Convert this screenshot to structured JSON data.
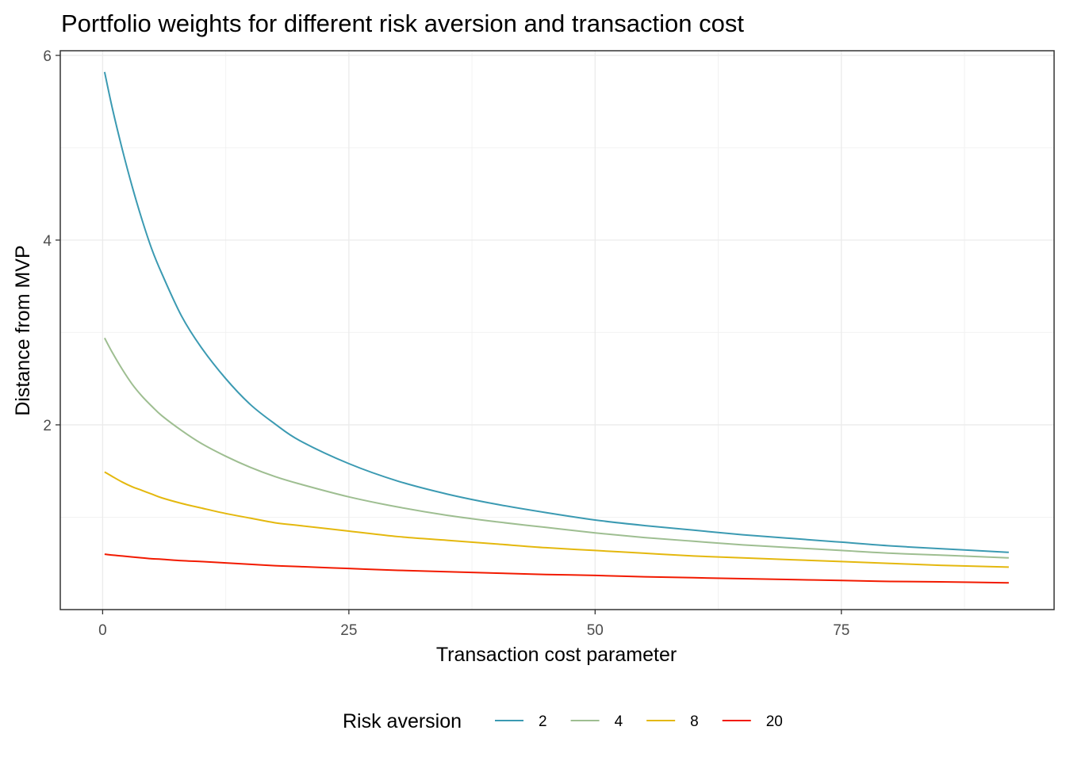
{
  "chart_data": {
    "type": "line",
    "title": "Portfolio weights for different risk aversion and transaction cost",
    "xlabel": "Transaction cost parameter",
    "ylabel": "Distance from MVP",
    "xlim": [
      -4.3,
      96.6
    ],
    "ylim": [
      0.0,
      6.05
    ],
    "xticks": [
      0,
      25,
      50,
      75
    ],
    "yticks": [
      2,
      4,
      6
    ],
    "xtick_labels": [
      "0",
      "25",
      "50",
      "75"
    ],
    "ytick_labels": [
      "2",
      "4",
      "6"
    ],
    "grid": true,
    "legend": {
      "title": "Risk aversion",
      "position": "bottom"
    },
    "x": [
      0.2,
      1,
      2,
      3,
      4,
      5,
      6,
      8,
      10,
      12.5,
      15,
      17.5,
      20,
      25,
      30,
      35,
      40,
      45,
      50,
      55,
      60,
      65,
      70,
      75,
      80,
      85,
      92
    ],
    "series": [
      {
        "name": "2",
        "color": "#3B9AB2",
        "values": [
          5.82,
          5.42,
          4.98,
          4.58,
          4.22,
          3.9,
          3.64,
          3.18,
          2.84,
          2.5,
          2.22,
          2.01,
          1.83,
          1.58,
          1.39,
          1.25,
          1.14,
          1.05,
          0.97,
          0.91,
          0.86,
          0.81,
          0.77,
          0.73,
          0.69,
          0.66,
          0.62
        ]
      },
      {
        "name": "4",
        "color": "#9EBE91",
        "values": [
          2.94,
          2.78,
          2.6,
          2.44,
          2.31,
          2.2,
          2.1,
          1.94,
          1.8,
          1.66,
          1.54,
          1.44,
          1.36,
          1.22,
          1.11,
          1.02,
          0.95,
          0.89,
          0.83,
          0.78,
          0.74,
          0.7,
          0.67,
          0.64,
          0.61,
          0.59,
          0.56
        ]
      },
      {
        "name": "8",
        "color": "#E4B80E",
        "values": [
          1.49,
          1.44,
          1.38,
          1.33,
          1.29,
          1.25,
          1.21,
          1.15,
          1.1,
          1.04,
          0.99,
          0.94,
          0.91,
          0.85,
          0.79,
          0.75,
          0.71,
          0.67,
          0.64,
          0.61,
          0.58,
          0.56,
          0.54,
          0.52,
          0.5,
          0.48,
          0.46
        ]
      },
      {
        "name": "20",
        "color": "#F21A00",
        "values": [
          0.6,
          0.59,
          0.58,
          0.57,
          0.56,
          0.55,
          0.545,
          0.53,
          0.52,
          0.505,
          0.49,
          0.475,
          0.465,
          0.445,
          0.425,
          0.41,
          0.395,
          0.38,
          0.37,
          0.355,
          0.345,
          0.335,
          0.325,
          0.315,
          0.305,
          0.3,
          0.29
        ]
      }
    ]
  }
}
